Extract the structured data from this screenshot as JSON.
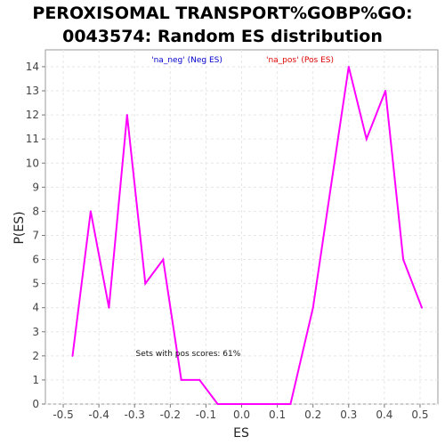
{
  "chart_data": {
    "type": "line",
    "title_line1": "PEROXISOMAL TRANSPORT%GOBP%GO:",
    "title_line2": "0043574: Random ES distribution",
    "xlabel": "ES",
    "ylabel": "P(ES)",
    "xlim": [
      -0.55,
      0.55
    ],
    "ylim": [
      0,
      14.7
    ],
    "grid": true,
    "x_ticks": [
      -0.5,
      -0.4,
      -0.3,
      -0.2,
      -0.1,
      0.0,
      0.1,
      0.2,
      0.3,
      0.4,
      0.5
    ],
    "x_tick_labels": [
      "-0.5",
      "-0.4",
      "-0.3",
      "-0.2",
      "-0.1",
      "0.0",
      "0.1",
      "0.2",
      "0.3",
      "0.4",
      "0.5"
    ],
    "y_ticks": [
      0,
      1,
      2,
      3,
      4,
      5,
      6,
      7,
      8,
      9,
      10,
      11,
      12,
      13,
      14
    ],
    "y_tick_labels": [
      "0",
      "1",
      "2",
      "3",
      "4",
      "5",
      "6",
      "7",
      "8",
      "9",
      "10",
      "11",
      "12",
      "13",
      "14"
    ],
    "legend": [
      {
        "label": "'na_neg' (Neg ES)",
        "color": "#0000cc"
      },
      {
        "label": "'na_pos' (Pos ES)",
        "color": "#dd0000"
      }
    ],
    "annotation": "Sets with pos scores: 61%",
    "annotation_at": {
      "x": -0.15,
      "y": 2
    },
    "series": [
      {
        "color": "#ff00ff",
        "x": [
          -0.474,
          -0.423,
          -0.372,
          -0.321,
          -0.27,
          -0.22,
          -0.169,
          -0.118,
          -0.067,
          -0.016,
          0.035,
          0.086,
          0.137,
          0.2,
          0.25,
          0.3,
          0.35,
          0.403,
          0.453,
          0.505
        ],
        "y": [
          2,
          8,
          4,
          12,
          5,
          6,
          1,
          1,
          0,
          0,
          0,
          0,
          0,
          4,
          9,
          14,
          11,
          13,
          6,
          4
        ]
      }
    ]
  }
}
